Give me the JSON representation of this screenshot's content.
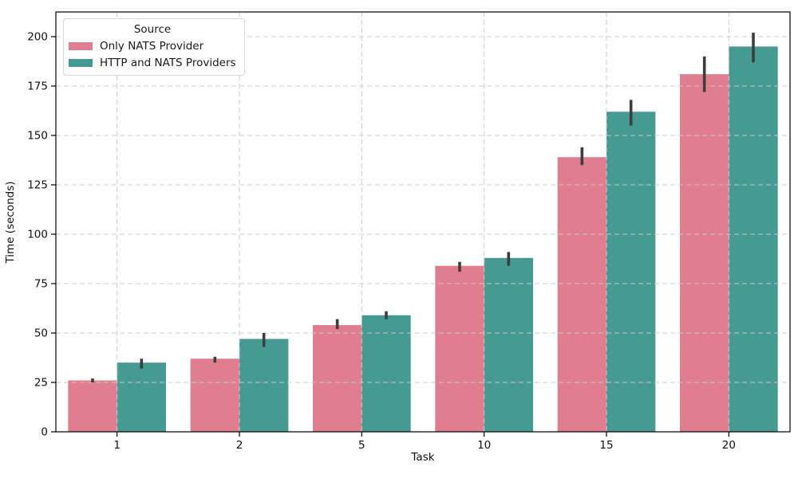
{
  "chart_data": {
    "type": "bar",
    "title": "",
    "xlabel": "Task",
    "ylabel": "Time (seconds)",
    "legend_title": "Source",
    "legend_position": "upper left",
    "grid": "dashed, both axes, light gray, drawn over bars",
    "categories": [
      "1",
      "2",
      "5",
      "10",
      "15",
      "20"
    ],
    "y_ticks": [
      0,
      25,
      50,
      75,
      100,
      125,
      150,
      175,
      200
    ],
    "ylim": [
      0,
      212.5
    ],
    "series": [
      {
        "name": "Only NATS Provider",
        "color": "#e07d90",
        "values": [
          26,
          37,
          54,
          84,
          139,
          181
        ],
        "err_low": [
          25,
          35,
          52,
          81,
          135,
          172
        ],
        "err_high": [
          27,
          38,
          57,
          86,
          144,
          190
        ]
      },
      {
        "name": "HTTP and NATS Providers",
        "color": "#459a92",
        "values": [
          35,
          47,
          59,
          88,
          162,
          195
        ],
        "err_low": [
          32,
          43,
          57,
          84,
          155,
          187
        ],
        "err_high": [
          37,
          50,
          61,
          91,
          168,
          202
        ]
      }
    ],
    "errorbar_color": "#3d3d3d",
    "gridline_color": "#cccccc",
    "spine_color": "#000000"
  }
}
